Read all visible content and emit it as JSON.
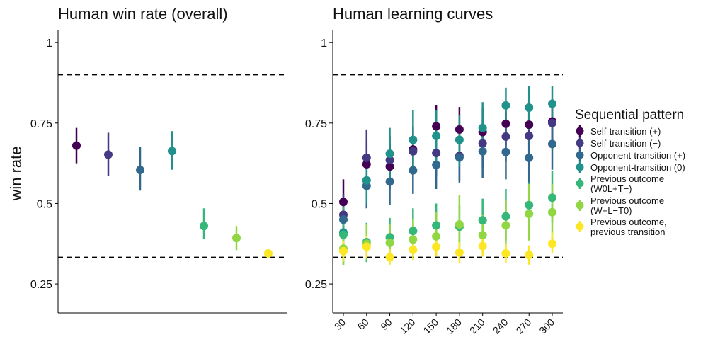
{
  "chart_data": [
    {
      "type": "scatter",
      "title": "Human win rate (overall)",
      "xlabel": "",
      "ylabel": "win rate",
      "ylim": [
        0.16,
        1.04
      ],
      "yticks": [
        0.25,
        0.5,
        0.75,
        1
      ],
      "ytick_labels": [
        "0.25",
        "0.5",
        "0.75",
        "1"
      ],
      "reference_lines": [
        0.9,
        0.333
      ],
      "series": [
        {
          "name": "Self-transition (+)",
          "value": 0.68,
          "lo": 0.625,
          "hi": 0.735
        },
        {
          "name": "Self-transition (−)",
          "value": 0.652,
          "lo": 0.585,
          "hi": 0.72
        },
        {
          "name": "Opponent-transition (+)",
          "value": 0.604,
          "lo": 0.54,
          "hi": 0.675
        },
        {
          "name": "Opponent-transition (0)",
          "value": 0.663,
          "lo": 0.605,
          "hi": 0.725
        },
        {
          "name": "Previous outcome (W0L+T−)",
          "value": 0.43,
          "lo": 0.39,
          "hi": 0.485
        },
        {
          "name": "Previous outcome (W+L−T0)",
          "value": 0.393,
          "lo": 0.355,
          "hi": 0.43
        },
        {
          "name": "Previous outcome, previous transition",
          "value": 0.345,
          "lo": 0.335,
          "hi": 0.355
        }
      ]
    },
    {
      "type": "scatter",
      "title": "Human learning curves",
      "xlabel": "",
      "ylabel": "",
      "ylim": [
        0.16,
        1.04
      ],
      "yticks": [
        0.25,
        0.5,
        0.75,
        1
      ],
      "ytick_labels": [
        "0.25",
        "0.5",
        "0.75",
        "1"
      ],
      "reference_lines": [
        0.9,
        0.333
      ],
      "x": [
        30,
        60,
        90,
        120,
        150,
        180,
        210,
        240,
        270,
        300
      ],
      "x_tick_labels": [
        "30",
        "60",
        "90",
        "120",
        "150",
        "180",
        "210",
        "240",
        "270",
        "300"
      ],
      "series": [
        {
          "name": "Self-transition (+)",
          "values": [
            0.505,
            0.622,
            0.615,
            0.668,
            0.74,
            0.73,
            0.722,
            0.748,
            0.745,
            0.755
          ],
          "lo": [
            0.44,
            0.55,
            0.545,
            0.595,
            0.67,
            0.66,
            0.645,
            0.68,
            0.67,
            0.68
          ],
          "hi": [
            0.575,
            0.695,
            0.685,
            0.74,
            0.805,
            0.8,
            0.795,
            0.815,
            0.815,
            0.825
          ]
        },
        {
          "name": "Self-transition (−)",
          "values": [
            0.465,
            0.642,
            0.635,
            0.662,
            0.657,
            0.648,
            0.687,
            0.708,
            0.71,
            0.75
          ],
          "lo": [
            0.4,
            0.56,
            0.56,
            0.59,
            0.585,
            0.57,
            0.61,
            0.63,
            0.64,
            0.68
          ],
          "hi": [
            0.53,
            0.73,
            0.71,
            0.735,
            0.73,
            0.725,
            0.76,
            0.785,
            0.785,
            0.82
          ]
        },
        {
          "name": "Opponent-transition (+)",
          "values": [
            0.45,
            0.555,
            0.568,
            0.603,
            0.62,
            0.643,
            0.662,
            0.66,
            0.642,
            0.685
          ],
          "lo": [
            0.385,
            0.485,
            0.495,
            0.53,
            0.545,
            0.565,
            0.58,
            0.575,
            0.565,
            0.605
          ],
          "hi": [
            0.515,
            0.625,
            0.64,
            0.675,
            0.69,
            0.72,
            0.74,
            0.745,
            0.72,
            0.76
          ]
        },
        {
          "name": "Opponent-transition (0)",
          "values": [
            0.41,
            0.572,
            0.655,
            0.698,
            0.71,
            0.698,
            0.735,
            0.805,
            0.798,
            0.81
          ],
          "lo": [
            0.345,
            0.5,
            0.575,
            0.61,
            0.63,
            0.615,
            0.66,
            0.745,
            0.73,
            0.745
          ],
          "hi": [
            0.475,
            0.645,
            0.735,
            0.79,
            0.79,
            0.775,
            0.815,
            0.86,
            0.865,
            0.865
          ]
        },
        {
          "name": "Previous outcome (W0L+T−)",
          "values": [
            0.403,
            0.38,
            0.395,
            0.415,
            0.432,
            0.428,
            0.448,
            0.46,
            0.495,
            0.518
          ],
          "lo": [
            0.31,
            0.318,
            0.33,
            0.35,
            0.37,
            0.365,
            0.385,
            0.385,
            0.43,
            0.44
          ],
          "hi": [
            0.49,
            0.44,
            0.455,
            0.485,
            0.5,
            0.495,
            0.515,
            0.545,
            0.565,
            0.6
          ]
        },
        {
          "name": "Previous outcome (W+L−T0)",
          "values": [
            0.36,
            0.375,
            0.378,
            0.388,
            0.398,
            0.435,
            0.402,
            0.432,
            0.468,
            0.473
          ],
          "lo": [
            0.31,
            0.325,
            0.33,
            0.335,
            0.34,
            0.35,
            0.345,
            0.355,
            0.385,
            0.385
          ],
          "hi": [
            0.41,
            0.435,
            0.435,
            0.45,
            0.475,
            0.525,
            0.465,
            0.51,
            0.56,
            0.56
          ]
        },
        {
          "name": "Previous outcome, previous transition",
          "values": [
            0.352,
            0.366,
            0.333,
            0.356,
            0.366,
            0.348,
            0.368,
            0.345,
            0.34,
            0.375
          ],
          "lo": [
            0.32,
            0.33,
            0.31,
            0.325,
            0.335,
            0.315,
            0.335,
            0.315,
            0.31,
            0.345
          ],
          "hi": [
            0.385,
            0.4,
            0.36,
            0.39,
            0.4,
            0.38,
            0.4,
            0.375,
            0.37,
            0.41
          ]
        }
      ]
    }
  ],
  "legend": {
    "title": "Sequential pattern",
    "items": [
      {
        "line1": "Self-transition (+)",
        "line2": "",
        "color": "#440154"
      },
      {
        "line1": "Self-transition (−)",
        "line2": "",
        "color": "#443983"
      },
      {
        "line1": "Opponent-transition (+)",
        "line2": "",
        "color": "#31688e"
      },
      {
        "line1": "Opponent-transition (0)",
        "line2": "",
        "color": "#21918c"
      },
      {
        "line1": "Previous outcome",
        "line2": "(W0L+T−)",
        "color": "#35b779"
      },
      {
        "line1": "Previous outcome",
        "line2": "(W+L−T0)",
        "color": "#90d743"
      },
      {
        "line1": "Previous outcome,",
        "line2": "previous transition",
        "color": "#fde725"
      }
    ]
  },
  "colors": [
    "#440154",
    "#443983",
    "#31688e",
    "#21918c",
    "#35b779",
    "#90d743",
    "#fde725"
  ]
}
